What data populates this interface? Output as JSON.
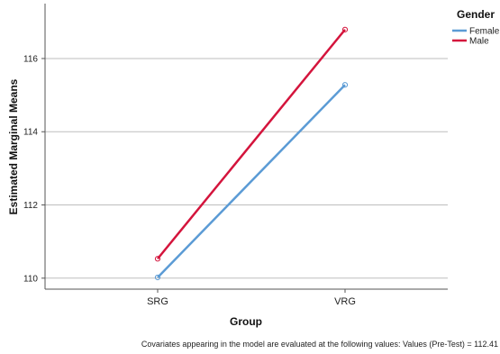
{
  "chart_data": {
    "type": "line",
    "categories": [
      "SRG",
      "VRG"
    ],
    "series": [
      {
        "name": "Female",
        "values": [
          110.02,
          115.28
        ],
        "color": "#5b9bd5"
      },
      {
        "name": "Male",
        "values": [
          110.53,
          116.79
        ],
        "color": "#d4143c"
      }
    ],
    "xlabel": "Group",
    "ylabel": "Estimated Marginal Means",
    "ylim": [
      109.7,
      117.5
    ],
    "yticks": [
      110,
      112,
      114,
      116
    ],
    "legend": {
      "title": "Gender",
      "position": "top-right"
    },
    "grid": "horizontal",
    "footnote": "Covariates appearing in the model are evaluated at the following values: Values (Pre-Test) = 112.41"
  }
}
